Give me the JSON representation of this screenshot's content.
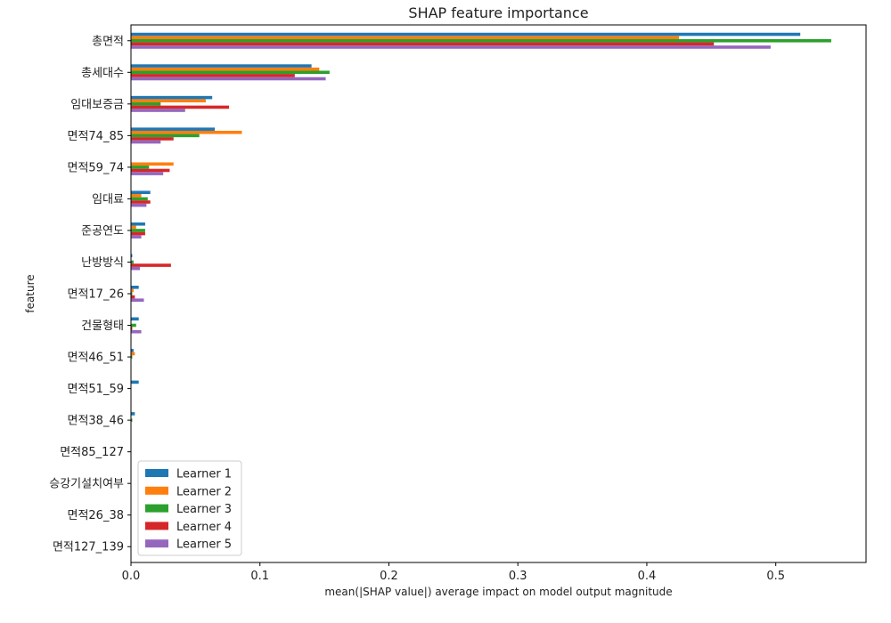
{
  "chart_data": {
    "type": "bar",
    "orientation": "horizontal",
    "title": "SHAP feature importance",
    "xlabel": "mean(|SHAP value|) average impact on model output magnitude",
    "ylabel": "feature",
    "xlim": [
      0,
      0.57
    ],
    "xticks": [
      "0.0",
      "0.1",
      "0.2",
      "0.3",
      "0.4",
      "0.5"
    ],
    "grid": false,
    "legend_position": "lower-left",
    "categories": [
      "총면적",
      "총세대수",
      "임대보증금",
      "면적74_85",
      "면적59_74",
      "임대료",
      "준공연도",
      "난방방식",
      "면적17_26",
      "건물형태",
      "면적46_51",
      "면적51_59",
      "면적38_46",
      "면적85_127",
      "승강기설치여부",
      "면적26_38",
      "면적127_139"
    ],
    "series": [
      {
        "name": "Learner 1",
        "color": "#1f77b4",
        "values": [
          0.519,
          0.14,
          0.063,
          0.065,
          0.0,
          0.015,
          0.011,
          0.001,
          0.006,
          0.006,
          0.002,
          0.006,
          0.003,
          0.0,
          0.0,
          0.0,
          0.0
        ]
      },
      {
        "name": "Learner 2",
        "color": "#ff7f0e",
        "values": [
          0.425,
          0.146,
          0.058,
          0.086,
          0.033,
          0.008,
          0.004,
          0.0,
          0.002,
          0.0,
          0.003,
          0.0,
          0.0,
          0.0,
          0.0,
          0.0,
          0.0
        ]
      },
      {
        "name": "Learner 3",
        "color": "#2ca02c",
        "values": [
          0.543,
          0.154,
          0.023,
          0.053,
          0.014,
          0.013,
          0.011,
          0.002,
          0.001,
          0.004,
          0.001,
          0.0,
          0.001,
          0.0,
          0.0,
          0.0,
          0.0
        ]
      },
      {
        "name": "Learner 4",
        "color": "#d62728",
        "values": [
          0.452,
          0.127,
          0.076,
          0.033,
          0.03,
          0.015,
          0.011,
          0.031,
          0.003,
          0.001,
          0.0,
          0.0,
          0.0,
          0.0,
          0.0,
          0.0,
          0.0
        ]
      },
      {
        "name": "Learner 5",
        "color": "#9467bd",
        "values": [
          0.496,
          0.151,
          0.042,
          0.023,
          0.025,
          0.012,
          0.008,
          0.007,
          0.01,
          0.008,
          0.0,
          0.0,
          0.0,
          0.0,
          0.0,
          0.0,
          0.0
        ]
      }
    ]
  }
}
